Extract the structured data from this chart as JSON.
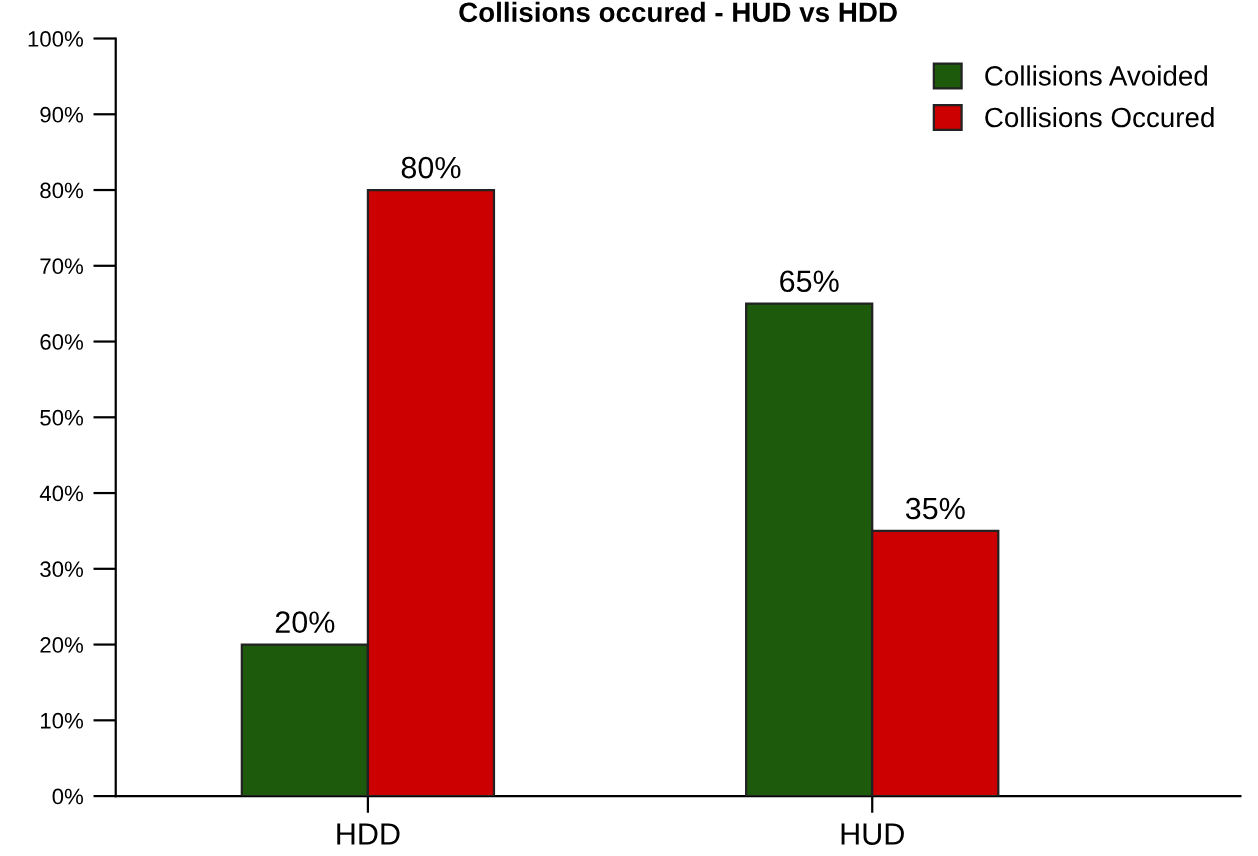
{
  "chart_data": {
    "type": "bar",
    "title": "Collisions occured - HUD vs HDD",
    "categories": [
      "HDD",
      "HUD"
    ],
    "series": [
      {
        "name": "Collisions Avoided",
        "color": "#1e5a0c",
        "values": [
          20,
          65
        ],
        "value_labels": [
          "20%",
          "65%"
        ]
      },
      {
        "name": "Collisions Occured",
        "color": "#cc0000",
        "values": [
          80,
          35
        ],
        "value_labels": [
          "80%",
          "35%"
        ]
      }
    ],
    "ylim": [
      0,
      100
    ],
    "yticks": [
      {
        "value": 0,
        "label": "0%"
      },
      {
        "value": 10,
        "label": "10%"
      },
      {
        "value": 20,
        "label": "20%"
      },
      {
        "value": 30,
        "label": "30%"
      },
      {
        "value": 40,
        "label": "40%"
      },
      {
        "value": 50,
        "label": "50%"
      },
      {
        "value": 60,
        "label": "60%"
      },
      {
        "value": 70,
        "label": "70%"
      },
      {
        "value": 80,
        "label": "80%"
      },
      {
        "value": 90,
        "label": "90%"
      },
      {
        "value": 100,
        "label": "100%"
      }
    ],
    "grid": false,
    "legend": "top right"
  }
}
